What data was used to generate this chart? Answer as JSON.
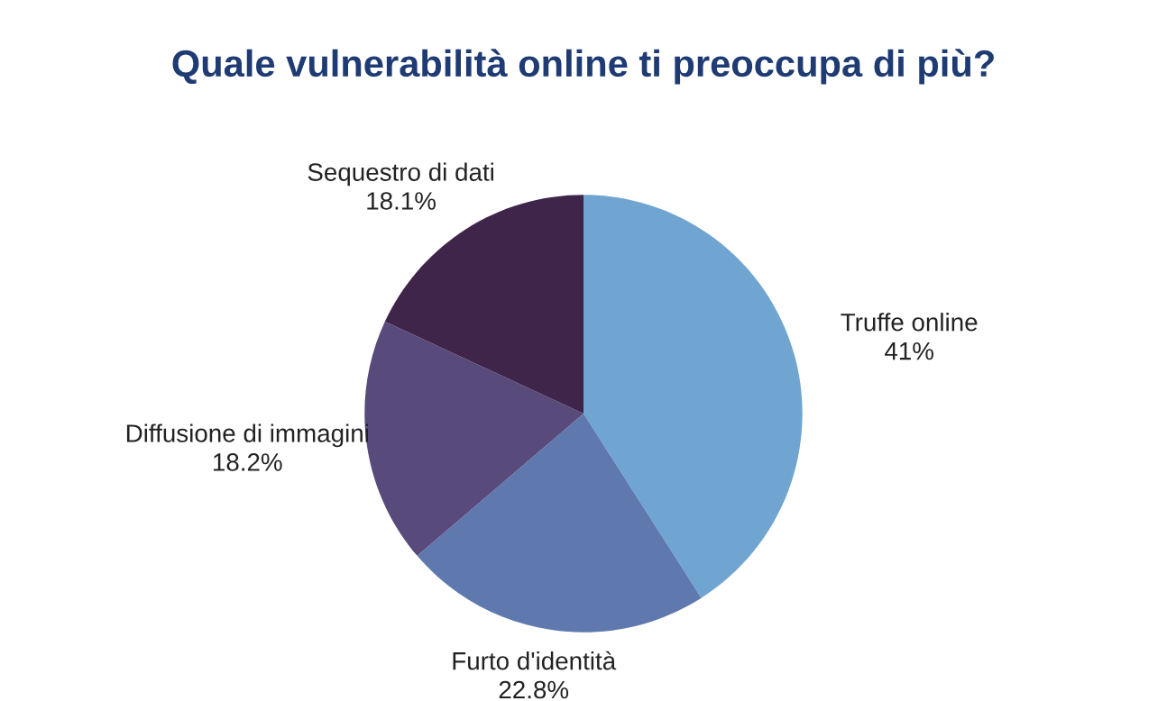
{
  "chart_data": {
    "type": "pie",
    "title": "Quale vulnerabilità online ti preoccupa di più?",
    "categories": [
      "Truffe online",
      "Furto d'identità",
      "Diffusione di immagini",
      "Sequestro di dati"
    ],
    "values": [
      41,
      22.8,
      18.2,
      18.1
    ],
    "colors": [
      "#6fa5d0",
      "#5f79ae",
      "#594a7c",
      "#3e2549"
    ],
    "value_labels": [
      "41%",
      "22.8%",
      "18.2%",
      "18.1%"
    ]
  }
}
